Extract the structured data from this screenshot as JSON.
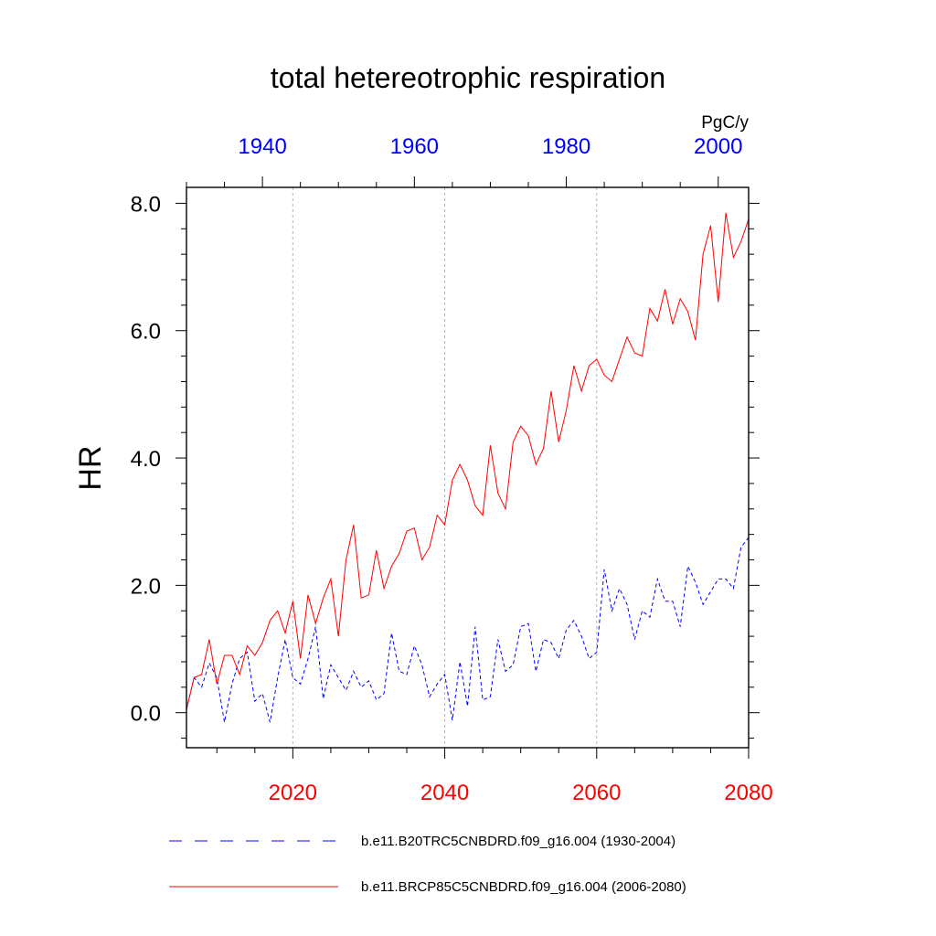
{
  "chart_data": {
    "type": "line",
    "title": "total hetereotrophic respiration",
    "units": "PgC/y",
    "ylabel": "HR",
    "ylim": [
      -0.55,
      8.25
    ],
    "y_ticks": [
      0.0,
      2.0,
      4.0,
      6.0,
      8.0
    ],
    "y_tick_labels": [
      "0.0",
      "2.0",
      "4.0",
      "6.0",
      "8.0"
    ],
    "x_bottom": {
      "range": [
        2006,
        2080
      ],
      "ticks": [
        2020,
        2040,
        2060,
        2080
      ],
      "tick_labels": [
        "2020",
        "2040",
        "2060",
        "2080"
      ],
      "color": "#ff0000"
    },
    "x_top": {
      "range": [
        1930,
        2004
      ],
      "ticks": [
        1940,
        1960,
        1980,
        2000
      ],
      "tick_labels": [
        "1940",
        "1960",
        "1980",
        "2000"
      ],
      "color": "#0000ff"
    },
    "gridlines_x": [
      2020,
      2040,
      2060
    ],
    "series": [
      {
        "name": "b.e11.B20TRC5CNBDRD.f09_g16.004 (1930-2004)",
        "axis": "top",
        "style": "dashed",
        "color": "#0000ff",
        "x_start": 1930,
        "values": [
          0.05,
          0.55,
          0.4,
          0.78,
          0.55,
          -0.15,
          0.45,
          0.85,
          0.95,
          0.18,
          0.3,
          -0.15,
          0.55,
          1.15,
          0.55,
          0.45,
          0.85,
          1.35,
          0.22,
          0.75,
          0.55,
          0.35,
          0.65,
          0.4,
          0.5,
          0.2,
          0.3,
          1.25,
          0.65,
          0.6,
          1.05,
          0.75,
          0.25,
          0.45,
          0.6,
          -0.12,
          0.8,
          0.1,
          1.35,
          0.2,
          0.25,
          1.15,
          0.65,
          0.75,
          1.35,
          1.4,
          0.65,
          1.15,
          1.1,
          0.85,
          1.3,
          1.45,
          1.2,
          0.85,
          0.95,
          2.25,
          1.6,
          1.95,
          1.7,
          1.15,
          1.6,
          1.5,
          2.1,
          1.75,
          1.75,
          1.35,
          2.3,
          2.05,
          1.7,
          1.9,
          2.1,
          2.1,
          1.95,
          2.6,
          2.75
        ]
      },
      {
        "name": "b.e11.BRCP85C5CNBDRD.f09_g16.004 (2006-2080)",
        "axis": "bottom",
        "style": "solid",
        "color": "#ff0000",
        "x_start": 2006,
        "values": [
          0.05,
          0.55,
          0.6,
          1.15,
          0.45,
          0.9,
          0.9,
          0.6,
          1.05,
          0.9,
          1.1,
          1.45,
          1.6,
          1.25,
          1.75,
          0.85,
          1.85,
          1.4,
          1.8,
          2.1,
          1.2,
          2.4,
          2.95,
          1.8,
          1.85,
          2.55,
          1.95,
          2.3,
          2.5,
          2.85,
          2.9,
          2.4,
          2.6,
          3.1,
          2.95,
          3.65,
          3.9,
          3.65,
          3.25,
          3.1,
          4.2,
          3.45,
          3.2,
          4.25,
          4.5,
          4.35,
          3.9,
          4.15,
          5.05,
          4.25,
          4.75,
          5.45,
          5.05,
          5.45,
          5.55,
          5.3,
          5.2,
          5.55,
          5.9,
          5.65,
          5.6,
          6.35,
          6.15,
          6.65,
          6.1,
          6.5,
          6.3,
          5.85,
          7.2,
          7.65,
          6.45,
          7.85,
          7.15,
          7.4,
          7.75
        ]
      }
    ]
  }
}
